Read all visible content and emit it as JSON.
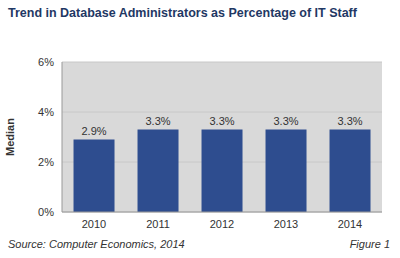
{
  "chart_data": {
    "type": "bar",
    "title": "Trend in Database Administrators as Percentage of IT Staff",
    "y_label": "Median",
    "categories": [
      "2010",
      "2011",
      "2012",
      "2013",
      "2014"
    ],
    "values": [
      2.9,
      3.3,
      3.3,
      3.3,
      3.3
    ],
    "value_labels": [
      "2.9%",
      "3.3%",
      "3.3%",
      "3.3%",
      "3.3%"
    ],
    "color": "#2e4d8f",
    "ylim": [
      0,
      6
    ],
    "yticks": [
      {
        "value": 0,
        "label": "0%"
      },
      {
        "value": 2,
        "label": "2%"
      },
      {
        "value": 4,
        "label": "4%"
      },
      {
        "value": 6,
        "label": "6%"
      }
    ],
    "grid": true,
    "data_labels": true,
    "annotations": [
      "Source: Computer Economics, 2014",
      "Figure 1"
    ]
  }
}
